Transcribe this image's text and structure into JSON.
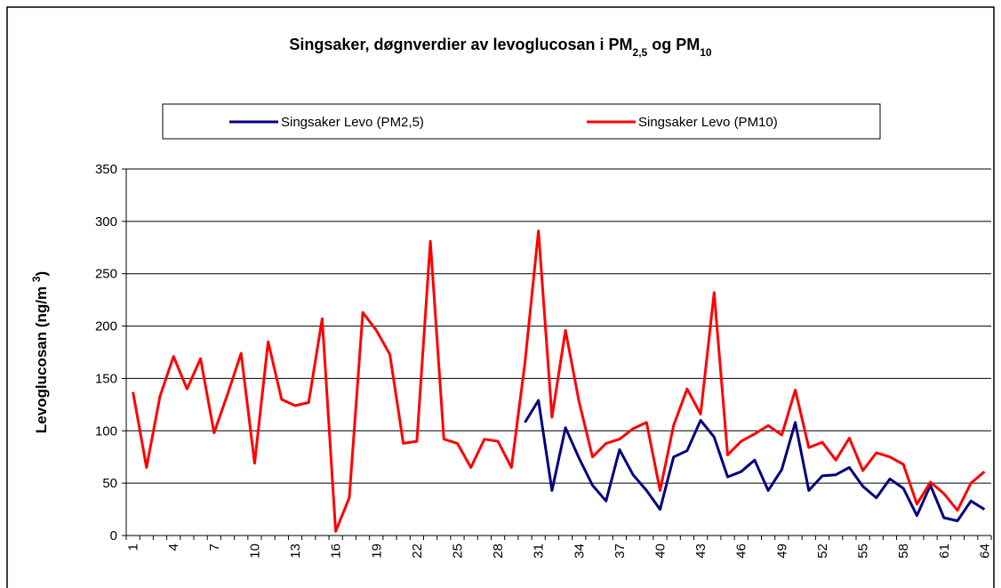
{
  "chart_data": {
    "type": "line",
    "title": [
      "Singsaker, døgnverdier av levoglucosan i PM",
      "2,5",
      " og PM",
      "10"
    ],
    "ylabel": [
      "Levoglucosan (ng/m ",
      "3",
      ")"
    ],
    "categories": [
      "1",
      null,
      null,
      "4",
      null,
      null,
      "7",
      null,
      null,
      "10",
      null,
      null,
      "13",
      null,
      null,
      "16",
      null,
      null,
      "19",
      null,
      null,
      "22",
      null,
      null,
      "25",
      null,
      null,
      "28",
      null,
      null,
      "31",
      null,
      null,
      "34",
      null,
      null,
      "37",
      null,
      null,
      "40",
      null,
      null,
      "43",
      null,
      null,
      "46",
      null,
      null,
      "49",
      null,
      null,
      "52",
      null,
      null,
      "55",
      null,
      null,
      "58",
      null,
      null,
      "61",
      null,
      null,
      "64"
    ],
    "series": [
      {
        "name": "Singsaker Levo (PM2,5)",
        "color": "#000080",
        "values": [
          null,
          null,
          null,
          null,
          null,
          null,
          null,
          null,
          null,
          null,
          null,
          null,
          null,
          null,
          null,
          null,
          null,
          null,
          null,
          null,
          null,
          null,
          null,
          null,
          null,
          null,
          null,
          null,
          null,
          108,
          129,
          43,
          103,
          74,
          48,
          33,
          82,
          58,
          43,
          25,
          75,
          81,
          110,
          94,
          56,
          61,
          72,
          43,
          63,
          108,
          43,
          57,
          58,
          65,
          47,
          36,
          54,
          45,
          19,
          48,
          17,
          14,
          33,
          25
        ]
      },
      {
        "name": "Singsaker Levo (PM10)",
        "color": "#ff0000",
        "values": [
          137,
          65,
          133,
          171,
          140,
          169,
          98,
          135,
          174,
          69,
          185,
          130,
          124,
          127,
          207,
          4,
          36,
          213,
          196,
          173,
          88,
          90,
          281,
          92,
          88,
          65,
          92,
          90,
          65,
          165,
          291,
          113,
          196,
          128,
          75,
          88,
          92,
          102,
          108,
          43,
          105,
          140,
          116,
          232,
          77,
          90,
          97,
          105,
          96,
          139,
          84,
          89,
          72,
          93,
          62,
          79,
          75,
          68,
          30,
          51,
          40,
          24,
          50,
          61
        ]
      }
    ],
    "ylim": [
      0,
      350
    ],
    "yticks": [
      0,
      50,
      100,
      150,
      200,
      250,
      300,
      350
    ],
    "grid": true
  }
}
